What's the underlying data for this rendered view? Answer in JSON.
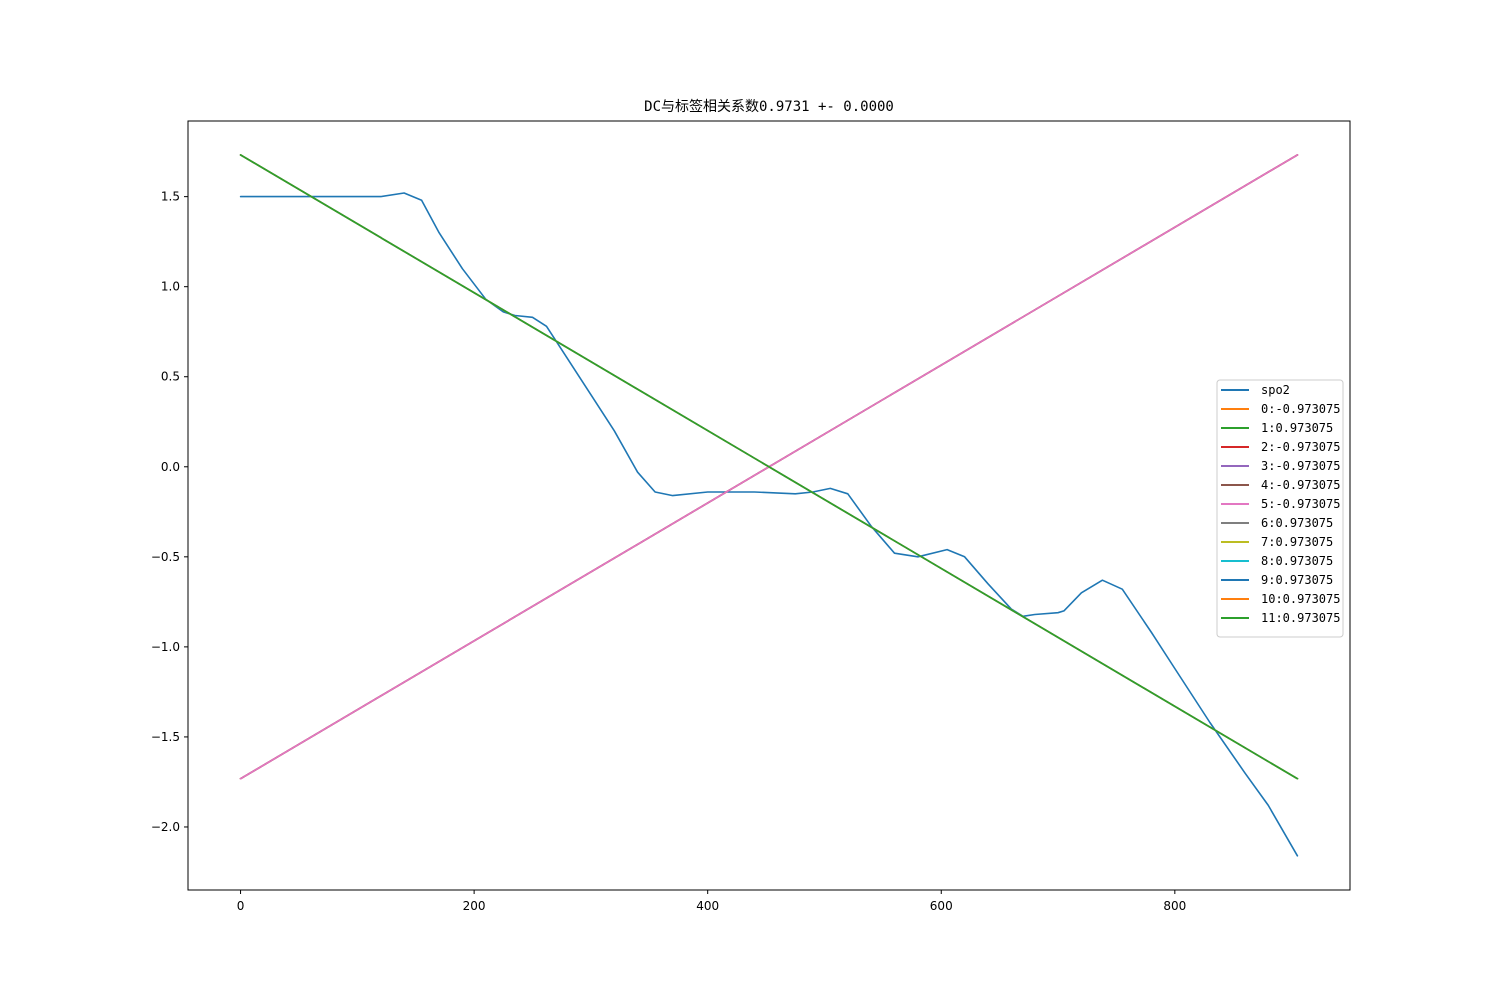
{
  "chart_data": {
    "type": "line",
    "title": "DC与标签相关系数0.9731 +- 0.0000",
    "xlabel": "",
    "ylabel": "",
    "xlim": [
      -45,
      950
    ],
    "ylim": [
      -2.35,
      1.92
    ],
    "xticks": [
      0,
      200,
      400,
      600,
      800
    ],
    "yticks": [
      1.5,
      1.0,
      0.5,
      0.0,
      -0.5,
      -1.0,
      -1.5,
      -2.0
    ],
    "ytick_labels": [
      "1.5",
      "1.0",
      "0.5",
      "0.0",
      "−0.5",
      "−1.0",
      "−1.5",
      "−2.0"
    ],
    "grid": false,
    "legend_position": "center-right",
    "series": [
      {
        "name": "spo2",
        "color": "#1f77b4",
        "x": [
          0,
          60,
          100,
          120,
          140,
          155,
          170,
          190,
          210,
          225,
          235,
          250,
          262,
          275,
          300,
          320,
          340,
          355,
          370,
          400,
          440,
          475,
          490,
          505,
          520,
          540,
          560,
          580,
          605,
          620,
          640,
          660,
          670,
          680,
          700,
          705,
          720,
          738,
          755,
          780,
          800,
          830,
          860,
          880,
          905
        ],
        "y": [
          1.5,
          1.5,
          1.5,
          1.5,
          1.52,
          1.48,
          1.3,
          1.1,
          0.93,
          0.86,
          0.84,
          0.83,
          0.78,
          0.65,
          0.4,
          0.2,
          -0.03,
          -0.14,
          -0.16,
          -0.14,
          -0.14,
          -0.15,
          -0.14,
          -0.12,
          -0.15,
          -0.33,
          -0.48,
          -0.5,
          -0.46,
          -0.5,
          -0.65,
          -0.79,
          -0.83,
          -0.82,
          -0.81,
          -0.8,
          -0.7,
          -0.63,
          -0.68,
          -0.92,
          -1.12,
          -1.42,
          -1.7,
          -1.88,
          -2.16
        ]
      },
      {
        "name": "0:-0.973075",
        "color": "#ff7f0e",
        "x": [
          0,
          905
        ],
        "y": [
          -1.732,
          1.732
        ]
      },
      {
        "name": "1:0.973075",
        "color": "#2ca02c",
        "x": [
          0,
          905
        ],
        "y": [
          1.732,
          -1.732
        ]
      },
      {
        "name": "2:-0.973075",
        "color": "#d62728",
        "x": [
          0,
          905
        ],
        "y": [
          -1.732,
          1.732
        ]
      },
      {
        "name": "3:-0.973075",
        "color": "#9467bd",
        "x": [
          0,
          905
        ],
        "y": [
          -1.732,
          1.732
        ]
      },
      {
        "name": "4:-0.973075",
        "color": "#8c564b",
        "x": [
          0,
          905
        ],
        "y": [
          -1.732,
          1.732
        ]
      },
      {
        "name": "5:-0.973075",
        "color": "#e377c2",
        "x": [
          0,
          905
        ],
        "y": [
          -1.732,
          1.732
        ]
      },
      {
        "name": "6:0.973075",
        "color": "#7f7f7f",
        "x": [
          0,
          905
        ],
        "y": [
          1.732,
          -1.732
        ]
      },
      {
        "name": "7:0.973075",
        "color": "#bcbd22",
        "x": [
          0,
          905
        ],
        "y": [
          1.732,
          -1.732
        ]
      },
      {
        "name": "8:0.973075",
        "color": "#17becf",
        "x": [
          0,
          905
        ],
        "y": [
          1.732,
          -1.732
        ]
      },
      {
        "name": "9:0.973075",
        "color": "#1f77b4",
        "x": [
          0,
          905
        ],
        "y": [
          1.732,
          -1.732
        ]
      },
      {
        "name": "10:0.973075",
        "color": "#ff7f0e",
        "x": [
          0,
          905
        ],
        "y": [
          1.732,
          -1.732
        ]
      },
      {
        "name": "11:0.973075",
        "color": "#2ca02c",
        "x": [
          0,
          905
        ],
        "y": [
          1.732,
          -1.732
        ]
      }
    ]
  }
}
